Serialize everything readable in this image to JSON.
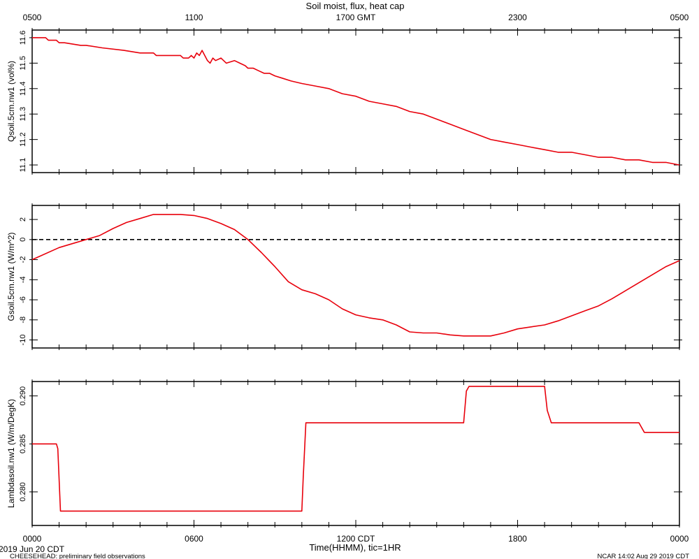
{
  "chart_data": [
    {
      "type": "line",
      "title": "Soil moist, flux, heat cap",
      "top_axis_ticks": [
        "0500",
        "1100",
        "1700 GMT",
        "2300",
        "0500"
      ],
      "ylabel": "Qsoil.5cm.nw1 (vol%)",
      "ylim": [
        11.07,
        11.63
      ],
      "yticks": [
        "11.1",
        "11.2",
        "11.3",
        "11.4",
        "11.5",
        "11.6"
      ],
      "xlim": [
        0,
        24
      ],
      "grid": false,
      "color": "#e8000b",
      "series": [
        {
          "x": [
            0,
            0.5,
            0.6,
            0.9,
            1,
            1.2,
            1.8,
            2,
            2.6,
            3.4,
            4,
            4.5,
            4.6,
            5.2,
            5.5,
            5.6,
            5.8,
            5.9,
            6,
            6.1,
            6.2,
            6.3,
            6.4,
            6.5,
            6.6,
            6.7,
            6.8,
            7,
            7.2,
            7.5,
            7.7,
            7.9,
            8,
            8.2,
            8.4,
            8.6,
            8.8,
            9,
            9.3,
            9.6,
            10,
            10.5,
            11,
            11.5,
            12,
            12.5,
            13,
            13.5,
            14,
            14.5,
            15,
            15.5,
            16,
            16.5,
            17,
            17.5,
            18,
            18.5,
            19,
            19.5,
            20,
            20.5,
            21,
            21.5,
            22,
            22.5,
            23,
            23.5,
            24
          ],
          "y": [
            11.6,
            11.6,
            11.59,
            11.59,
            11.58,
            11.58,
            11.57,
            11.57,
            11.56,
            11.55,
            11.54,
            11.54,
            11.53,
            11.53,
            11.53,
            11.52,
            11.52,
            11.53,
            11.52,
            11.54,
            11.53,
            11.55,
            11.53,
            11.51,
            11.5,
            11.52,
            11.51,
            11.52,
            11.5,
            11.51,
            11.5,
            11.49,
            11.48,
            11.48,
            11.47,
            11.46,
            11.46,
            11.45,
            11.44,
            11.43,
            11.42,
            11.41,
            11.4,
            11.38,
            11.37,
            11.35,
            11.34,
            11.33,
            11.31,
            11.3,
            11.28,
            11.26,
            11.24,
            11.22,
            11.2,
            11.19,
            11.18,
            11.17,
            11.16,
            11.15,
            11.15,
            11.14,
            11.13,
            11.13,
            11.12,
            11.12,
            11.11,
            11.11,
            11.1
          ]
        }
      ]
    },
    {
      "type": "line",
      "ylabel": "Gsoil.5cm.nw1 (W/m^2)",
      "ylim": [
        -10.8,
        3.4
      ],
      "yticks": [
        "-10",
        "-8",
        "-6",
        "-4",
        "-2",
        "0",
        "2"
      ],
      "xlim": [
        0,
        24
      ],
      "grid": false,
      "reference_line": 0,
      "color": "#e8000b",
      "series": [
        {
          "x": [
            0,
            1,
            2,
            2.5,
            3,
            3.5,
            4,
            4.5,
            5,
            5.5,
            6,
            6.5,
            7,
            7.5,
            8,
            8.5,
            9,
            9.5,
            10,
            10.5,
            11,
            11.5,
            12,
            12.5,
            13,
            13.5,
            14,
            14.5,
            15,
            15.5,
            16,
            16.5,
            17,
            17.5,
            18,
            18.5,
            19,
            19.5,
            20,
            20.5,
            21,
            21.5,
            22,
            22.5,
            23,
            23.5,
            24
          ],
          "y": [
            -2,
            -0.8,
            0,
            0.4,
            1.1,
            1.7,
            2.1,
            2.5,
            2.5,
            2.5,
            2.4,
            2.1,
            1.6,
            1,
            0,
            -1.3,
            -2.7,
            -4.2,
            -5,
            -5.4,
            -6,
            -6.9,
            -7.5,
            -7.8,
            -8,
            -8.5,
            -9.2,
            -9.3,
            -9.3,
            -9.5,
            -9.6,
            -9.6,
            -9.6,
            -9.3,
            -8.9,
            -8.7,
            -8.5,
            -8.1,
            -7.6,
            -7.1,
            -6.6,
            -5.9,
            -5.1,
            -4.3,
            -3.5,
            -2.7,
            -2.1
          ]
        }
      ]
    },
    {
      "type": "line",
      "ylabel": "Lambdasoil.nw1 (W/m/DegK)",
      "ylim": [
        0.2765,
        0.2915
      ],
      "yticks": [
        "0.280",
        "0.285",
        "0.290"
      ],
      "xlim": [
        0,
        24
      ],
      "grid": false,
      "color": "#e8000b",
      "series": [
        {
          "x": [
            0,
            0.9,
            0.95,
            1.05,
            10,
            10.05,
            10.15,
            16,
            16.1,
            16.2,
            19,
            19.1,
            19.25,
            22.5,
            22.7,
            24
          ],
          "y": [
            0.285,
            0.285,
            0.2845,
            0.278,
            0.278,
            0.2815,
            0.2872,
            0.2872,
            0.2905,
            0.291,
            0.291,
            0.2885,
            0.2872,
            0.2872,
            0.2862,
            0.2862
          ]
        }
      ]
    }
  ],
  "bottom_axis": {
    "ticks": [
      "0000",
      "0600",
      "1200 CDT",
      "1800",
      "0000"
    ],
    "xlabel": "Time(HHMM), tic=1HR"
  },
  "footer": {
    "date": "2019 Jun 20 CDT",
    "project": "CHEESEHEAD: preliminary field observations",
    "stamp": "NCAR 14:02 Aug 29 2019 CDT"
  }
}
